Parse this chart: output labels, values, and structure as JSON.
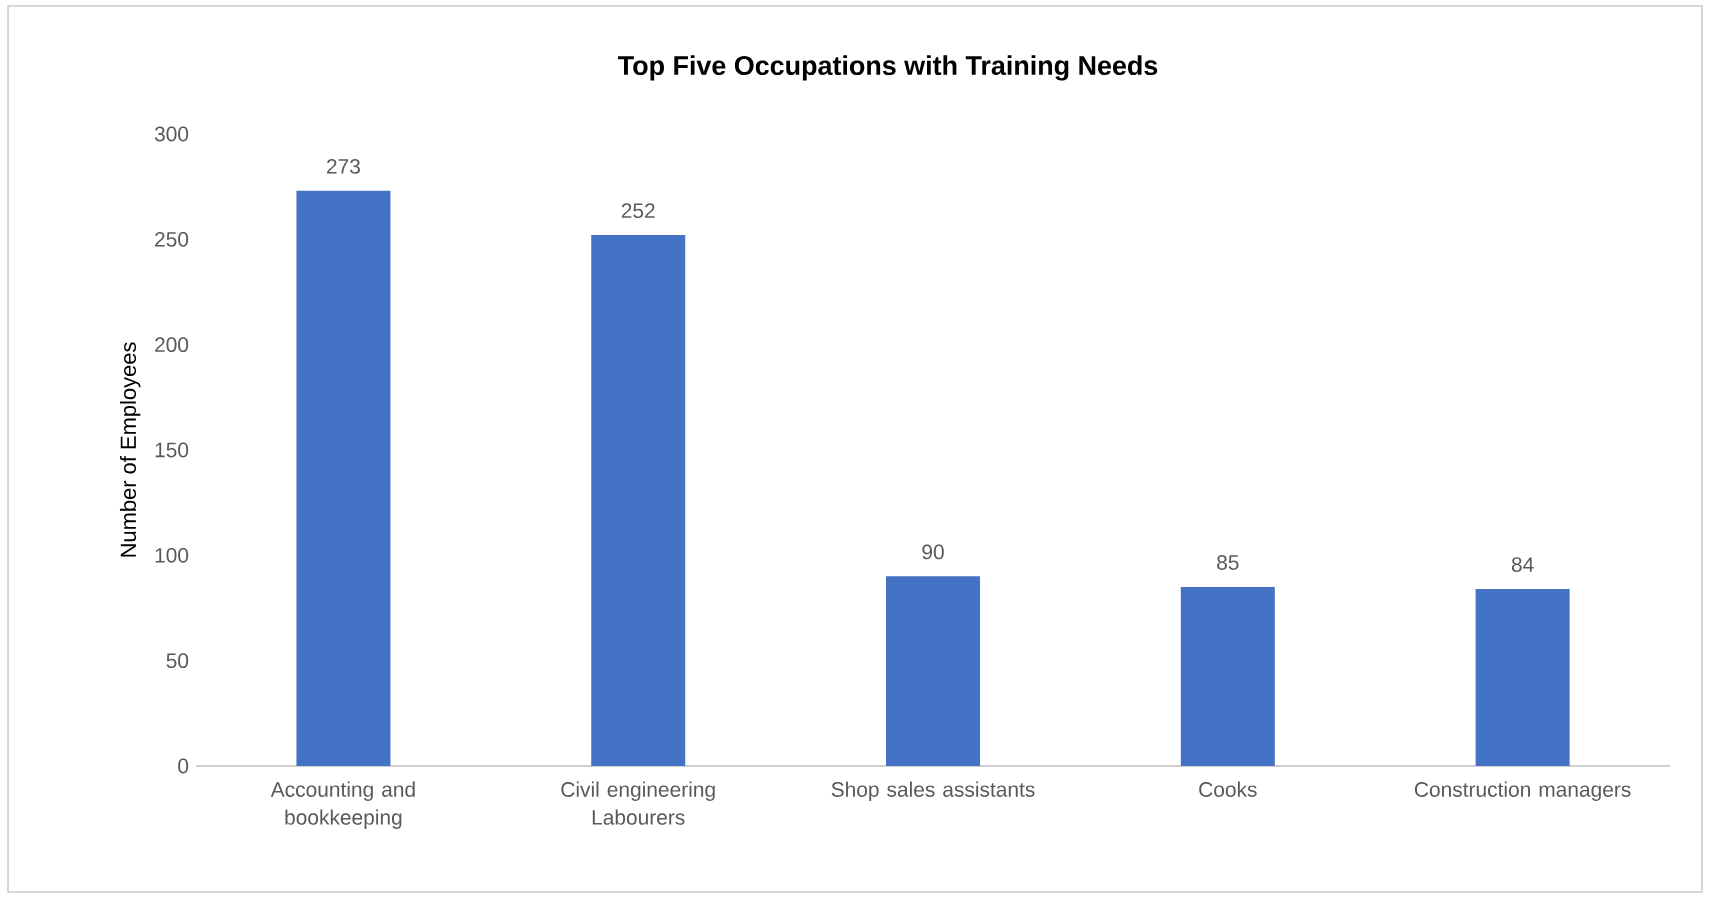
{
  "chart_data": {
    "type": "bar",
    "title": "Top Five Occupations with Training Needs",
    "ylabel": "Number of Employees",
    "categories": [
      "Accounting and bookkeeping",
      "Civil engineering Labourers",
      "Shop sales assistants",
      "Cooks",
      "Construction managers"
    ],
    "values": [
      273,
      252,
      90,
      85,
      84
    ],
    "color": "#4472c4",
    "ylim": [
      0,
      300
    ],
    "yticks": [
      0,
      50,
      100,
      150,
      200,
      250,
      300
    ],
    "data_labels": true
  }
}
